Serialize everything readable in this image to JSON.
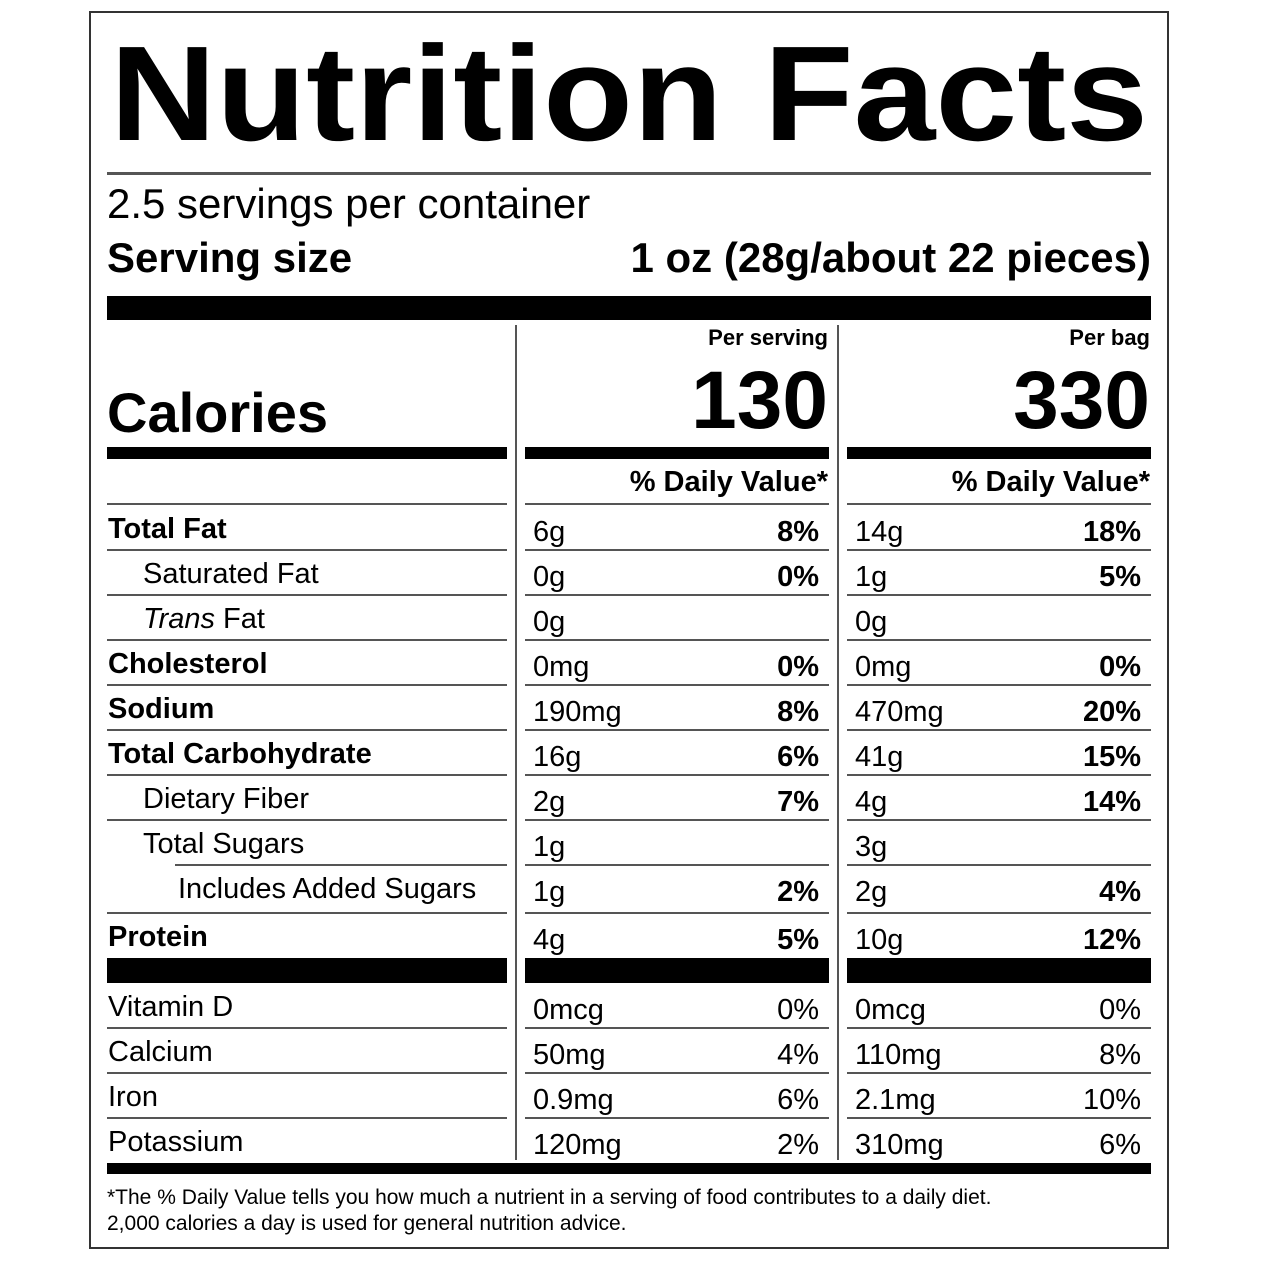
{
  "title": "Nutrition Facts",
  "servings": "2.5 servings per container",
  "serving_size": {
    "label": "Serving size",
    "value": "1 oz (28g/about 22 pieces)"
  },
  "calories": {
    "label": "Calories",
    "columns": [
      {
        "header": "Per serving",
        "value": "130",
        "dv_header": "% Daily Value*"
      },
      {
        "header": "Per bag",
        "value": "330",
        "dv_header": "% Daily Value*"
      }
    ]
  },
  "nutrients": [
    {
      "name": "Total Fat",
      "bold": true,
      "indent": 0,
      "per_serving": [
        "6g",
        "8%"
      ],
      "per_bag": [
        "14g",
        "18%"
      ]
    },
    {
      "name": "Saturated Fat",
      "bold": false,
      "indent": 1,
      "per_serving": [
        "0g",
        "0%"
      ],
      "per_bag": [
        "1g",
        "5%"
      ]
    },
    {
      "italic_prefix": "Trans",
      "name": "Fat",
      "bold": false,
      "indent": 1,
      "per_serving": [
        "0g"
      ],
      "per_bag": [
        "0g"
      ]
    },
    {
      "name": "Cholesterol",
      "bold": true,
      "indent": 0,
      "per_serving": [
        "0mg",
        "0%"
      ],
      "per_bag": [
        "0mg",
        "0%"
      ]
    },
    {
      "name": "Sodium",
      "bold": true,
      "indent": 0,
      "per_serving": [
        "190mg",
        "8%"
      ],
      "per_bag": [
        "470mg",
        "20%"
      ]
    },
    {
      "name": "Total Carbohydrate",
      "bold": true,
      "indent": 0,
      "per_serving": [
        "16g",
        "6%"
      ],
      "per_bag": [
        "41g",
        "15%"
      ]
    },
    {
      "name": "Dietary Fiber",
      "bold": false,
      "indent": 1,
      "per_serving": [
        "2g",
        "7%"
      ],
      "per_bag": [
        "4g",
        "14%"
      ]
    },
    {
      "name": "Total Sugars",
      "bold": false,
      "indent": 1,
      "per_serving": [
        "1g"
      ],
      "per_bag": [
        "3g"
      ]
    },
    {
      "name": "Includes Added Sugars",
      "bold": false,
      "indent": 2,
      "per_serving": [
        "1g",
        "2%"
      ],
      "per_bag": [
        "2g",
        "4%"
      ]
    },
    {
      "name": "Protein",
      "bold": true,
      "indent": 0,
      "per_serving": [
        "4g",
        "5%"
      ],
      "per_bag": [
        "10g",
        "12%"
      ]
    }
  ],
  "vitamins": [
    {
      "name": "Vitamin D",
      "per_serving": [
        "0mcg",
        "0%"
      ],
      "per_bag": [
        "0mcg",
        "0%"
      ]
    },
    {
      "name": "Calcium",
      "per_serving": [
        "50mg",
        "4%"
      ],
      "per_bag": [
        "110mg",
        "8%"
      ]
    },
    {
      "name": "Iron",
      "per_serving": [
        "0.9mg",
        "6%"
      ],
      "per_bag": [
        "2.1mg",
        "10%"
      ]
    },
    {
      "name": "Potassium",
      "per_serving": [
        "120mg",
        "2%"
      ],
      "per_bag": [
        "310mg",
        "6%"
      ]
    }
  ],
  "footnote": [
    "*The % Daily Value tells you how much a nutrient in a serving of food contributes to a daily diet.",
    "2,000 calories a day is used for general nutrition advice."
  ]
}
